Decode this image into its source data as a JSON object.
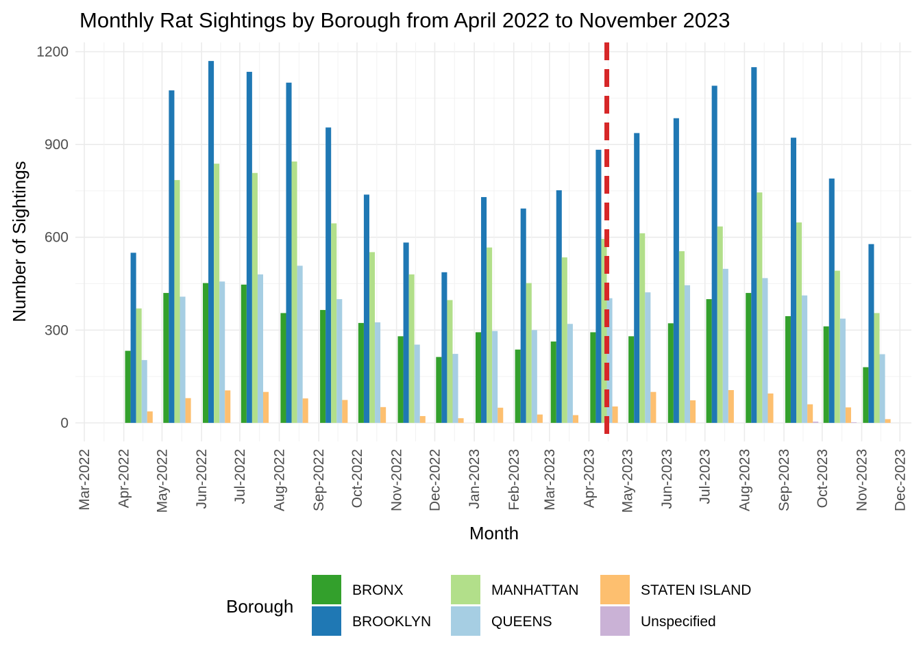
{
  "chart_data": {
    "type": "bar",
    "title": "Monthly Rat Sightings by Borough from April 2022 to November 2023",
    "xlabel": "Month",
    "ylabel": "Number of Sightings",
    "ylim": [
      -60,
      1230
    ],
    "yticks": [
      0,
      300,
      600,
      900,
      1200
    ],
    "x_ticks": [
      "Mar-2022",
      "Apr-2022",
      "May-2022",
      "Jun-2022",
      "Jul-2022",
      "Aug-2022",
      "Sep-2022",
      "Oct-2022",
      "Nov-2022",
      "Dec-2022",
      "Jan-2023",
      "Feb-2023",
      "Mar-2023",
      "Apr-2023",
      "May-2023",
      "Jun-2023",
      "Jul-2023",
      "Aug-2023",
      "Sep-2023",
      "Oct-2023",
      "Nov-2023",
      "Dec-2023"
    ],
    "x_tick_dates": [
      "2022-03-01",
      "2022-04-01",
      "2022-05-01",
      "2022-06-01",
      "2022-07-01",
      "2022-08-01",
      "2022-09-01",
      "2022-10-01",
      "2022-11-01",
      "2022-12-01",
      "2023-01-01",
      "2023-02-01",
      "2023-03-01",
      "2023-04-01",
      "2023-05-01",
      "2023-06-01",
      "2023-07-01",
      "2023-08-01",
      "2023-09-01",
      "2023-10-01",
      "2023-11-01",
      "2023-12-01"
    ],
    "x_range": [
      "2022-02-22",
      "2023-12-10"
    ],
    "categories": [
      "2022-04-15",
      "2022-05-15",
      "2022-06-15",
      "2022-07-15",
      "2022-08-15",
      "2022-09-15",
      "2022-10-15",
      "2022-11-15",
      "2022-12-15",
      "2023-01-15",
      "2023-02-15",
      "2023-03-15",
      "2023-04-15",
      "2023-05-15",
      "2023-06-15",
      "2023-07-15",
      "2023-08-15",
      "2023-09-15",
      "2023-10-15",
      "2023-11-15"
    ],
    "series": [
      {
        "name": "BRONX",
        "color": "#33a02c",
        "values": [
          233,
          420,
          452,
          447,
          355,
          365,
          323,
          280,
          213,
          293,
          237,
          263,
          293,
          280,
          322,
          400,
          420,
          345,
          312,
          180
        ]
      },
      {
        "name": "BROOKLYN",
        "color": "#1f78b4",
        "values": [
          550,
          1075,
          1170,
          1135,
          1100,
          955,
          738,
          583,
          487,
          730,
          693,
          752,
          883,
          937,
          985,
          1090,
          1150,
          922,
          790,
          578
        ]
      },
      {
        "name": "MANHATTAN",
        "color": "#b2df8a",
        "values": [
          370,
          785,
          838,
          808,
          845,
          645,
          552,
          480,
          397,
          567,
          452,
          535,
          595,
          613,
          555,
          635,
          745,
          648,
          492,
          355
        ]
      },
      {
        "name": "QUEENS",
        "color": "#a6cee3",
        "values": [
          203,
          408,
          457,
          480,
          508,
          400,
          325,
          253,
          223,
          297,
          300,
          320,
          403,
          422,
          445,
          498,
          468,
          412,
          337,
          222
        ]
      },
      {
        "name": "STATEN ISLAND",
        "color": "#fdbf6f",
        "values": [
          37,
          80,
          105,
          100,
          79,
          74,
          51,
          22,
          15,
          49,
          27,
          25,
          53,
          100,
          73,
          106,
          95,
          60,
          50,
          12
        ]
      },
      {
        "name": "Unspecified",
        "color": "#cab2d6",
        "values": [
          0,
          0,
          0,
          0,
          0,
          0,
          0,
          0,
          0,
          0,
          0,
          0,
          0,
          0,
          0,
          0,
          0,
          4,
          2,
          0
        ]
      }
    ],
    "reference_line": {
      "x": "2023-04-15",
      "color": "#d62728",
      "style": "dashed"
    },
    "legend": {
      "title": "Borough",
      "position": "bottom"
    },
    "grid": true
  }
}
